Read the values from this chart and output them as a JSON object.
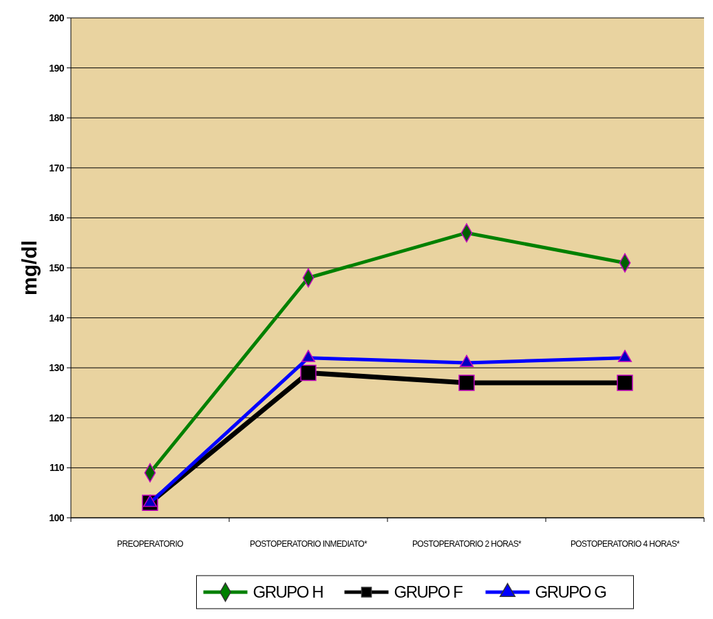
{
  "chart_data": {
    "type": "line",
    "ylabel": "mg/dl",
    "categories": [
      "PREOPERATORIO",
      "POSTOPERATORIO INMEDIATO*",
      "POSTOPERATORIO 2 HORAS*",
      "POSTOPERATORIO 4 HORAS*"
    ],
    "series": [
      {
        "name": "GRUPO H",
        "color": "#008000",
        "marker": "diamond",
        "values": [
          109,
          148,
          157,
          151
        ]
      },
      {
        "name": "GRUPO F",
        "color": "#000000",
        "marker": "square",
        "values": [
          103,
          129,
          127,
          127
        ]
      },
      {
        "name": "GRUPO G",
        "color": "#0000ff",
        "marker": "triangle",
        "values": [
          103,
          132,
          131,
          132
        ]
      }
    ],
    "ylim": [
      100,
      200
    ],
    "yticks": [
      100,
      110,
      120,
      130,
      140,
      150,
      160,
      170,
      180,
      190,
      200
    ],
    "grid": "y",
    "legend": "bottom",
    "line_style": "solid"
  }
}
